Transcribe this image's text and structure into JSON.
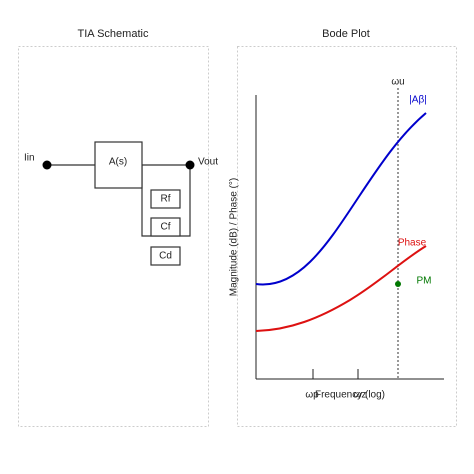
{
  "schematic": {
    "title": "TIA Schematic",
    "input": "Iin",
    "amplifier": "A(s)",
    "output": "Vout",
    "components": [
      "Rf",
      "Cf",
      "Cd"
    ]
  },
  "bode": {
    "title": "Bode Plot",
    "y_label": "Magnitude (dB) / Phase (°)",
    "x_label": "Frequency (log)",
    "x_markers": [
      "ωp",
      "ωz"
    ],
    "crossover": "ωu",
    "magnitude_label": "|Aβ|",
    "phase_label": "Phase",
    "margin_label": "PM"
  }
}
